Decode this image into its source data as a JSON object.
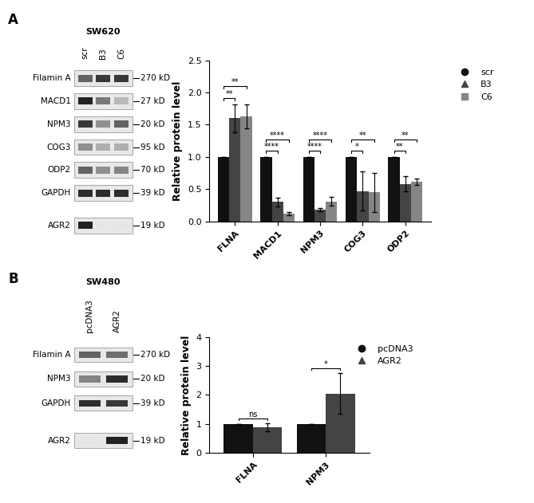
{
  "panel_labels": [
    "A",
    "B"
  ],
  "blots": [
    {
      "cell_line": "SW620",
      "lanes": [
        "scr",
        "B3",
        "C6"
      ],
      "rows": [
        {
          "protein": "Filamin A",
          "size": "270 kD",
          "intensity": [
            0.6,
            0.8,
            0.8
          ]
        },
        {
          "protein": "MACD1",
          "size": "27 kD",
          "intensity": [
            0.9,
            0.5,
            0.2
          ]
        },
        {
          "protein": "NPM3",
          "size": "20 kD",
          "intensity": [
            0.8,
            0.4,
            0.6
          ]
        },
        {
          "protein": "COG3",
          "size": "95 kD",
          "intensity": [
            0.4,
            0.25,
            0.25
          ]
        },
        {
          "protein": "ODP2",
          "size": "70 kD",
          "intensity": [
            0.6,
            0.4,
            0.45
          ]
        },
        {
          "protein": "GAPDH",
          "size": "39 kD",
          "intensity": [
            0.85,
            0.85,
            0.85
          ]
        },
        {
          "protein": "AGR2",
          "size": "19 kD",
          "intensity": [
            0.9,
            0.0,
            0.0
          ]
        }
      ]
    },
    {
      "cell_line": "SW480",
      "lanes": [
        "pcDNA3",
        "AGR2"
      ],
      "rows": [
        {
          "protein": "Filamin A",
          "size": "270 kD",
          "intensity": [
            0.6,
            0.55
          ]
        },
        {
          "protein": "NPM3",
          "size": "20 kD",
          "intensity": [
            0.45,
            0.85
          ]
        },
        {
          "protein": "GAPDH",
          "size": "39 kD",
          "intensity": [
            0.85,
            0.8
          ]
        },
        {
          "protein": "AGR2",
          "size": "19 kD",
          "intensity": [
            0.0,
            0.9
          ]
        }
      ]
    }
  ],
  "chart_data": [
    {
      "type": "bar",
      "y_label": "Relative protein level",
      "categories": [
        "FLNA",
        "MACD1",
        "NPM3",
        "COG3",
        "ODP2"
      ],
      "series": [
        {
          "name": "scr",
          "color": "#111111",
          "marker": "circle",
          "values": [
            1,
            1,
            1,
            1,
            1
          ],
          "errors": [
            0,
            0,
            0,
            0,
            0
          ]
        },
        {
          "name": "B3",
          "color": "#444444",
          "marker": "triangle",
          "values": [
            1.6,
            0.3,
            0.18,
            0.47,
            0.58
          ],
          "errors": [
            0.22,
            0.07,
            0.02,
            0.3,
            0.12
          ]
        },
        {
          "name": "C6",
          "color": "#858585",
          "marker": "square",
          "values": [
            1.63,
            0.12,
            0.31,
            0.45,
            0.62
          ],
          "errors": [
            0.18,
            0.02,
            0.07,
            0.3,
            0.05
          ]
        }
      ],
      "ylim": [
        0,
        2.5
      ],
      "yticks": [
        {
          "value": 0,
          "label": "0.0"
        },
        0.5,
        {
          "value": 1,
          "label": "1.0"
        },
        1.5,
        {
          "value": 2,
          "label": "2.0"
        },
        2.5
      ],
      "legend": "upper right",
      "significance": [
        {
          "compare": [
            "scr",
            "B3"
          ],
          "labels": [
            "**",
            "****",
            "****",
            "*",
            "**"
          ]
        },
        {
          "compare": [
            "scr",
            "C6"
          ],
          "labels": [
            "**",
            "****",
            "****",
            "**",
            "**"
          ]
        }
      ]
    },
    {
      "type": "bar",
      "y_label": "Relative protein level",
      "categories": [
        "FLNA",
        "NPM3"
      ],
      "series": [
        {
          "name": "pcDNA3",
          "color": "#111111",
          "marker": "circle",
          "values": [
            1,
            1
          ],
          "errors": [
            0,
            0
          ]
        },
        {
          "name": "AGR2",
          "color": "#444444",
          "marker": "triangle",
          "values": [
            0.88,
            2.05
          ],
          "errors": [
            0.15,
            0.7
          ]
        }
      ],
      "ylim": [
        0,
        4
      ],
      "yticks": [
        0,
        1,
        2,
        3,
        4
      ],
      "legend": "upper right",
      "significance": [
        {
          "compare": [
            "pcDNA3",
            "AGR2"
          ],
          "labels": [
            "ns",
            "*"
          ]
        }
      ]
    }
  ]
}
